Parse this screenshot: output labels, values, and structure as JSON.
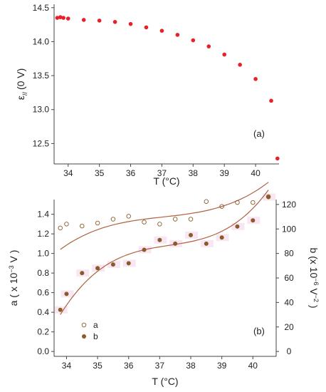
{
  "chart_data": [
    {
      "type": "scatter",
      "panel_label": "(a)",
      "xlabel": "T (°C)",
      "ylabel_main": "ε",
      "ylabel_sub": "//",
      "ylabel_suffix": "(0 V)",
      "xlim": [
        33.55,
        40.75
      ],
      "ylim": [
        12.2,
        14.55
      ],
      "xticks": [
        "34",
        "35",
        "36",
        "37",
        "38",
        "39",
        "40"
      ],
      "yticks": [
        "12.5",
        "13.0",
        "13.5",
        "14.0",
        "14.5"
      ],
      "marker_color": "#e8202a",
      "series": [
        {
          "x": [
            33.65,
            33.75,
            33.85,
            34.0,
            34.5,
            35.0,
            35.5,
            36.0,
            36.5,
            37.0,
            37.5,
            38.0,
            38.5,
            39.0,
            39.5,
            40.0,
            40.5,
            40.7
          ],
          "y": [
            14.35,
            14.36,
            14.35,
            14.34,
            14.32,
            14.31,
            14.29,
            14.26,
            14.21,
            14.16,
            14.1,
            14.02,
            13.93,
            13.81,
            13.66,
            13.45,
            13.13,
            12.28
          ]
        }
      ]
    },
    {
      "type": "scatter",
      "panel_label": "(b)",
      "xlabel": "T (°C)",
      "ylabel_left_main": "a ( x 10",
      "ylabel_left_sup": "−3",
      "ylabel_left_end": " V )",
      "ylabel_right_main": "b (x 10",
      "ylabel_right_sup": "−6",
      "ylabel_right_mid": " V",
      "ylabel_right_sup2": "−2",
      "ylabel_right_end": " )",
      "xlim": [
        33.6,
        40.75
      ],
      "ylim_left": [
        -0.05,
        1.55
      ],
      "ylim_right": [
        -4,
        124
      ],
      "xticks": [
        "34",
        "35",
        "36",
        "37",
        "38",
        "39",
        "40"
      ],
      "yticks_left": [
        "0.0",
        "0.2",
        "0.4",
        "0.6",
        "0.8",
        "1.0",
        "1.2",
        "1.4"
      ],
      "yticks_right": [
        "0",
        "20",
        "40",
        "60",
        "80",
        "100",
        "120"
      ],
      "marker_color": "#8a5a2b",
      "fit_color": "#b06040",
      "series": [
        {
          "name": "a",
          "axis": "left",
          "marker": "open-circle",
          "x": [
            33.8,
            34.0,
            34.5,
            35.0,
            35.5,
            36.0,
            36.5,
            37.0,
            37.5,
            38.0,
            38.5,
            39.0,
            39.5,
            40.0,
            40.5
          ],
          "y": [
            1.26,
            1.3,
            1.28,
            1.31,
            1.35,
            1.38,
            1.32,
            1.3,
            1.35,
            1.35,
            1.53,
            1.48,
            1.52,
            1.52,
            1.58
          ]
        },
        {
          "name": "b",
          "axis": "right",
          "marker": "filled-circle",
          "x": [
            33.8,
            34.0,
            34.5,
            35.0,
            35.5,
            36.0,
            36.5,
            37.0,
            37.5,
            38.0,
            38.5,
            39.0,
            39.5,
            40.0,
            40.5
          ],
          "y": [
            34,
            47,
            64,
            68,
            71,
            72,
            83,
            91,
            88,
            95,
            88,
            93,
            102,
            107,
            126
          ]
        }
      ]
    }
  ]
}
